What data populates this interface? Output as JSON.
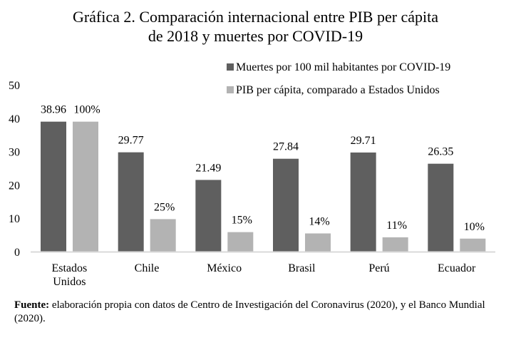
{
  "chart_data": {
    "type": "bar",
    "title_line1": "Gráfica 2. Comparación internacional entre PIB per cápita",
    "title_line2": "de 2018 y muertes por COVID-19",
    "categories": [
      [
        "Estados",
        "Unidos"
      ],
      [
        "Chile"
      ],
      [
        "México"
      ],
      [
        "Brasil"
      ],
      [
        "Perú"
      ],
      [
        "Ecuador"
      ]
    ],
    "series": [
      {
        "name": "Muertes por 100 mil habitantes por COVID-19",
        "values": [
          38.96,
          29.77,
          21.49,
          27.84,
          29.71,
          26.35
        ],
        "labels": [
          "38.96",
          "29.77",
          "21.49",
          "27.84",
          "29.71",
          "26.35"
        ],
        "color": "#5f5f5f"
      },
      {
        "name": "PIB per cápita, comparado a Estados Unidos",
        "values_percent": [
          100,
          25,
          15,
          14,
          11,
          10
        ],
        "labels": [
          "100%",
          "25%",
          "15%",
          "14%",
          "11%",
          "10%"
        ],
        "color": "#b3b3b3"
      }
    ],
    "yticks": [
      "0",
      "10",
      "20",
      "30",
      "40",
      "50"
    ],
    "ylim": [
      0,
      50
    ],
    "grid": false,
    "legend_position": "top-right",
    "axis_color": "#d9d9d9"
  },
  "source": {
    "label": "Fuente:",
    "text": " elaboración propia con datos de Centro de Investigación del Coronavirus (2020), y el Banco Mundial (2020)."
  }
}
